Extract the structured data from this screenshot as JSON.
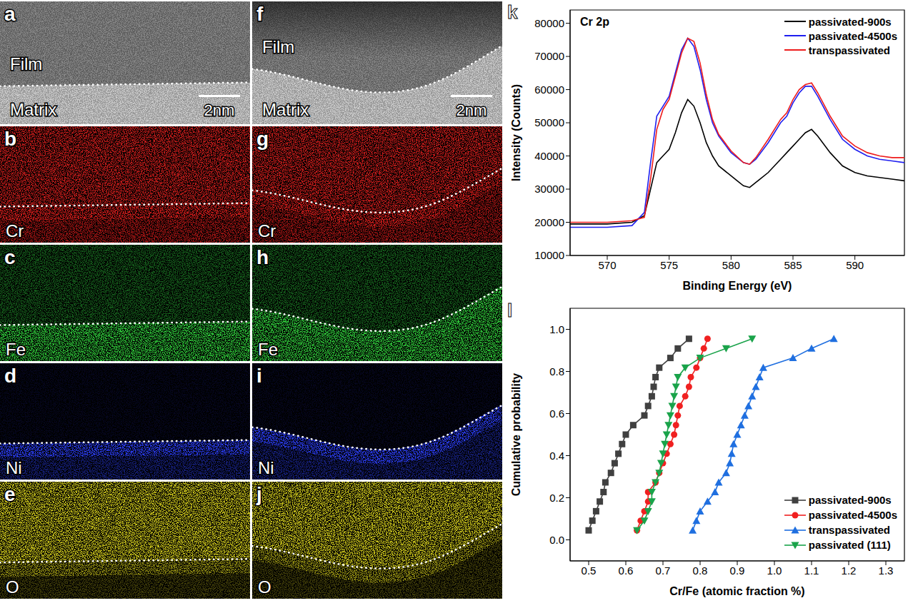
{
  "images": [
    [
      {
        "panel_label": "a",
        "texts": [
          "Film",
          "Matrix"
        ],
        "scale_bar": "2nm"
      },
      {
        "panel_label": "b",
        "element": "Cr",
        "color": "#e0201c"
      },
      {
        "panel_label": "c",
        "element": "Fe",
        "color": "#2fc83a"
      },
      {
        "panel_label": "d",
        "element": "Ni",
        "color": "#2c3cf0"
      },
      {
        "panel_label": "e",
        "element": "O",
        "color": "#e8e020"
      }
    ],
    [
      {
        "panel_label": "f",
        "texts": [
          "Film",
          "Matrix"
        ],
        "scale_bar": "2nm"
      },
      {
        "panel_label": "g",
        "element": "Cr",
        "color": "#e0201c"
      },
      {
        "panel_label": "h",
        "element": "Fe",
        "color": "#2fc83a"
      },
      {
        "panel_label": "i",
        "element": "Ni",
        "color": "#2c3cf0"
      },
      {
        "panel_label": "j",
        "element": "O",
        "color": "#e8e020"
      }
    ]
  ],
  "chart_data": [
    {
      "panel_label": "k",
      "type": "line",
      "annotation": "Cr 2p",
      "x_label": "Binding Energy (eV)",
      "y_label": "Intensity (Counts)",
      "xlim": [
        567,
        594
      ],
      "xticks": [
        570,
        575,
        580,
        585,
        590
      ],
      "ylim": [
        10000,
        84000
      ],
      "yticks": [
        10000,
        20000,
        30000,
        40000,
        50000,
        60000,
        70000,
        80000
      ],
      "legend": "upper right",
      "x": [
        567,
        570,
        572,
        573,
        573.5,
        574,
        574.5,
        575,
        575.5,
        576,
        576.5,
        577,
        577.5,
        578,
        578.5,
        579,
        580,
        581,
        581.5,
        582,
        583,
        584,
        584.5,
        585,
        585.5,
        586,
        586.5,
        587,
        588,
        589,
        590,
        591,
        592,
        593,
        594
      ],
      "series": [
        {
          "name": "passivated-900s",
          "color": "#000000",
          "values": [
            19500,
            19500,
            20000,
            22000,
            30000,
            38000,
            40000,
            42000,
            47000,
            53000,
            57000,
            55000,
            50000,
            44000,
            40000,
            37000,
            34000,
            31000,
            30500,
            32000,
            35000,
            39000,
            41000,
            43000,
            45000,
            47000,
            48000,
            46000,
            41000,
            37000,
            35000,
            34000,
            33500,
            33000,
            32500
          ]
        },
        {
          "name": "passivated-4500s",
          "color": "#1f1fef",
          "values": [
            18500,
            18500,
            19000,
            23000,
            38000,
            52000,
            55000,
            58000,
            65000,
            72000,
            75500,
            73000,
            66000,
            57000,
            50000,
            46000,
            41000,
            38000,
            37500,
            39000,
            44000,
            50000,
            52000,
            56000,
            59000,
            61000,
            61000,
            58000,
            51000,
            45000,
            42000,
            40000,
            39000,
            38500,
            38000
          ]
        },
        {
          "name": "transpassivated",
          "color": "#ee1c1c",
          "values": [
            20000,
            20000,
            20500,
            21500,
            33000,
            48000,
            54000,
            57000,
            64000,
            71000,
            75500,
            74500,
            68000,
            58500,
            51000,
            46500,
            41500,
            38000,
            37500,
            39500,
            45000,
            51000,
            53000,
            57000,
            60000,
            61500,
            62000,
            59000,
            52000,
            46000,
            43000,
            41000,
            40000,
            39500,
            39500
          ]
        }
      ]
    },
    {
      "panel_label": "l",
      "type": "line",
      "x_label": "Cr/Fe (atomic fraction %)",
      "y_label": "Cumulative probability",
      "xlim": [
        0.45,
        1.35
      ],
      "xticks": [
        0.5,
        0.6,
        0.7,
        0.8,
        0.9,
        {
          "value": 1,
          "label": "1.0"
        },
        1.1,
        1.2,
        1.3
      ],
      "ylim": [
        -0.1,
        1.1
      ],
      "yticks": [
        {
          "value": 0,
          "label": "0.0"
        },
        0.2,
        0.4,
        0.6,
        0.8,
        {
          "value": 1,
          "label": "1.0"
        }
      ],
      "legend": "lower right",
      "series": [
        {
          "name": "passivated-900s",
          "color": "#404040",
          "marker": "square",
          "x": [
            0.5,
            0.51,
            0.52,
            0.53,
            0.54,
            0.545,
            0.56,
            0.57,
            0.58,
            0.59,
            0.6,
            0.62,
            0.65,
            0.66,
            0.67,
            0.675,
            0.68,
            0.69,
            0.72,
            0.74,
            0.77
          ],
          "values": [
            0.045,
            0.091,
            0.136,
            0.182,
            0.227,
            0.273,
            0.318,
            0.364,
            0.409,
            0.455,
            0.5,
            0.545,
            0.591,
            0.636,
            0.682,
            0.727,
            0.773,
            0.818,
            0.864,
            0.909,
            0.955
          ]
        },
        {
          "name": "passivated-4500s",
          "color": "#f02020",
          "marker": "circle",
          "x": [
            0.63,
            0.64,
            0.65,
            0.66,
            0.66,
            0.68,
            0.69,
            0.7,
            0.71,
            0.72,
            0.73,
            0.735,
            0.74,
            0.745,
            0.76,
            0.77,
            0.775,
            0.79,
            0.8,
            0.81,
            0.82
          ],
          "values": [
            0.045,
            0.091,
            0.136,
            0.182,
            0.227,
            0.273,
            0.318,
            0.364,
            0.409,
            0.455,
            0.5,
            0.545,
            0.591,
            0.636,
            0.682,
            0.727,
            0.773,
            0.818,
            0.864,
            0.909,
            0.955
          ]
        },
        {
          "name": "transpassivated",
          "color": "#1f6fe0",
          "marker": "triangle-up",
          "x": [
            0.78,
            0.79,
            0.8,
            0.82,
            0.84,
            0.85,
            0.87,
            0.88,
            0.885,
            0.89,
            0.9,
            0.91,
            0.92,
            0.93,
            0.94,
            0.95,
            0.96,
            0.97,
            1.05,
            1.1,
            1.16
          ],
          "values": [
            0.045,
            0.091,
            0.136,
            0.182,
            0.227,
            0.273,
            0.318,
            0.364,
            0.409,
            0.455,
            0.5,
            0.545,
            0.591,
            0.636,
            0.682,
            0.727,
            0.773,
            0.818,
            0.864,
            0.909,
            0.955
          ]
        },
        {
          "name": "passivated (111)",
          "color": "#1aa34a",
          "marker": "triangle-down",
          "x": [
            0.63,
            0.65,
            0.66,
            0.67,
            0.67,
            0.68,
            0.69,
            0.695,
            0.7,
            0.705,
            0.71,
            0.715,
            0.72,
            0.725,
            0.73,
            0.735,
            0.74,
            0.76,
            0.8,
            0.87,
            0.94
          ],
          "values": [
            0.045,
            0.091,
            0.136,
            0.182,
            0.227,
            0.273,
            0.318,
            0.364,
            0.409,
            0.455,
            0.5,
            0.545,
            0.591,
            0.636,
            0.682,
            0.727,
            0.773,
            0.818,
            0.864,
            0.909,
            0.955
          ]
        }
      ]
    }
  ]
}
